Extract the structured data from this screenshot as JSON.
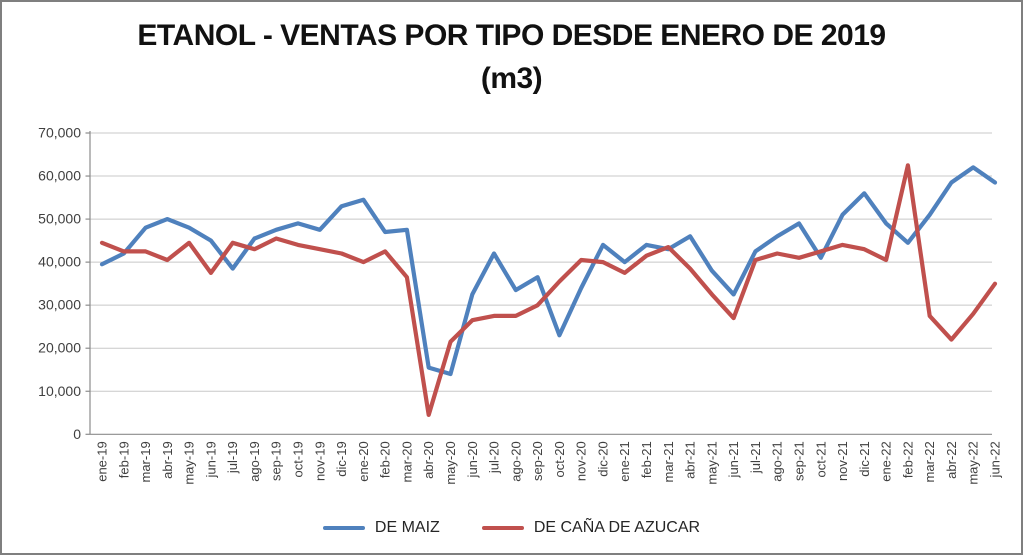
{
  "window": {
    "background": "#ffffff",
    "border_color": "#7f7f7f"
  },
  "chart_data": {
    "type": "line",
    "title_line1": "ETANOL - VENTAS POR TIPO DESDE ENERO DE 2019",
    "title_line2": "(m3)",
    "categories": [
      "ene-19",
      "feb-19",
      "mar-19",
      "abr-19",
      "may-19",
      "jun-19",
      "jul-19",
      "ago-19",
      "sep-19",
      "oct-19",
      "nov-19",
      "dic-19",
      "ene-20",
      "feb-20",
      "mar-20",
      "abr-20",
      "may-20",
      "jun-20",
      "jul-20",
      "ago-20",
      "sep-20",
      "oct-20",
      "nov-20",
      "dic-20",
      "ene-21",
      "feb-21",
      "mar-21",
      "abr-21",
      "may-21",
      "jun-21",
      "jul-21",
      "ago-21",
      "sep-21",
      "oct-21",
      "nov-21",
      "dic-21",
      "ene-22",
      "feb-22",
      "mar-22",
      "abr-22",
      "may-22",
      "jun-22"
    ],
    "series": [
      {
        "name": "DE MAIZ",
        "color": "#4F81BD",
        "values": [
          39500,
          42000,
          48000,
          50000,
          48000,
          45000,
          38500,
          45500,
          47500,
          49000,
          47500,
          53000,
          54500,
          47000,
          47500,
          15500,
          14000,
          32500,
          42000,
          33500,
          36500,
          23000,
          34000,
          44000,
          40000,
          44000,
          43000,
          46000,
          38000,
          32500,
          42500,
          46000,
          49000,
          41000,
          51000,
          56000,
          49000,
          44500,
          51000,
          58500,
          62000,
          58500
        ]
      },
      {
        "name": "DE CAÑA DE AZUCAR",
        "color": "#C0504D",
        "values": [
          44500,
          42500,
          42500,
          40500,
          44500,
          37500,
          44500,
          43000,
          45500,
          44000,
          43000,
          42000,
          40000,
          42500,
          36500,
          4500,
          21500,
          26500,
          27500,
          27500,
          30000,
          35500,
          40500,
          40000,
          37500,
          41500,
          43500,
          38500,
          32500,
          27000,
          40500,
          42000,
          41000,
          42500,
          44000,
          43000,
          40500,
          62500,
          27500,
          22000,
          28000,
          35000
        ]
      }
    ],
    "ylim": [
      0,
      70000
    ],
    "ytick_step": 10000,
    "ytick_labels": [
      "0",
      "10,000",
      "20,000",
      "30,000",
      "40,000",
      "50,000",
      "60,000",
      "70,000"
    ],
    "grid": true,
    "legend_position": "bottom",
    "axis_color": "#8C8C8C",
    "gridline_color": "#C8C8C8",
    "label_color": "#404040",
    "line_width": 4.2
  }
}
